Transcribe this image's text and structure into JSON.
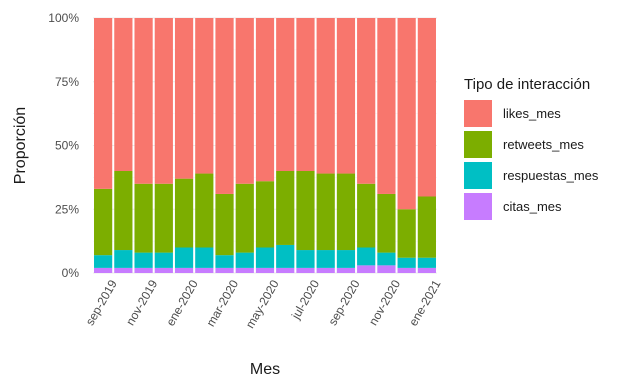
{
  "chart_data": {
    "type": "bar",
    "stacked": true,
    "xlabel": "Mes",
    "ylabel": "Proporción",
    "ylim": [
      0,
      1
    ],
    "y_ticks": [
      "0%",
      "25%",
      "50%",
      "75%",
      "100%"
    ],
    "x_tick_labels": [
      "sep-2019",
      "nov-2019",
      "ene-2020",
      "mar-2020",
      "may-2020",
      "jul-2020",
      "sep-2020",
      "nov-2020",
      "ene-2021"
    ],
    "categories": [
      "2019-08",
      "2019-09",
      "2019-10",
      "2019-11",
      "2019-12",
      "2020-01",
      "2020-02",
      "2020-03",
      "2020-04",
      "2020-05",
      "2020-06",
      "2020-07",
      "2020-08",
      "2020-09",
      "2020-10",
      "2020-11",
      "2020-12"
    ],
    "legend_title": "Tipo de interacción",
    "legend_position": "right",
    "grid": true,
    "series": [
      {
        "name": "citas_mes",
        "color": "#C77CFF",
        "values": [
          0.02,
          0.02,
          0.02,
          0.02,
          0.02,
          0.02,
          0.02,
          0.02,
          0.02,
          0.02,
          0.02,
          0.02,
          0.02,
          0.03,
          0.03,
          0.02,
          0.02
        ]
      },
      {
        "name": "respuestas_mes",
        "color": "#00BFC4",
        "values": [
          0.05,
          0.07,
          0.06,
          0.06,
          0.08,
          0.08,
          0.05,
          0.06,
          0.08,
          0.09,
          0.07,
          0.07,
          0.07,
          0.07,
          0.05,
          0.04,
          0.04
        ]
      },
      {
        "name": "retweets_mes",
        "color": "#7CAE00",
        "values": [
          0.26,
          0.31,
          0.27,
          0.27,
          0.27,
          0.29,
          0.24,
          0.27,
          0.26,
          0.29,
          0.31,
          0.3,
          0.3,
          0.25,
          0.23,
          0.19,
          0.24
        ]
      },
      {
        "name": "likes_mes",
        "color": "#F8766D",
        "values": [
          0.67,
          0.6,
          0.65,
          0.65,
          0.63,
          0.61,
          0.69,
          0.65,
          0.64,
          0.6,
          0.6,
          0.61,
          0.61,
          0.65,
          0.69,
          0.75,
          0.7
        ]
      }
    ]
  }
}
